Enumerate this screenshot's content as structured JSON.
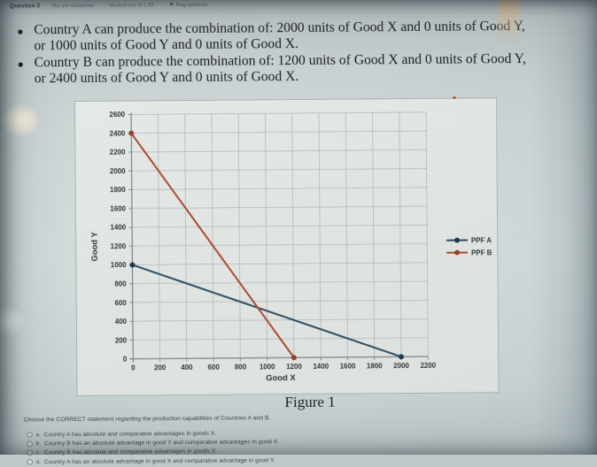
{
  "header": {
    "question_label": "Question 3",
    "status": "Not yet answered",
    "marks": "Marked out of 1.00",
    "flag_icon": "⚑",
    "flag_label": "Flag question"
  },
  "question": {
    "bullets": [
      {
        "lines": [
          "Country A can produce the combination of: 2000 units of Good X and 0 units of Good Y,",
          "or 1000 units of Good Y and 0 units of Good X."
        ]
      },
      {
        "lines": [
          "Country B can produce the combination of: 1200 units of Good X and 0 units of Good Y,",
          "or 2400 units of Good Y and 0 units of Good X."
        ]
      }
    ],
    "figure_caption": "Figure 1",
    "prompt": "Choose the CORRECT statement regarding the production capabilities of Countries A and B.",
    "options": [
      {
        "letter": "a.",
        "text": "Country A has absolute and comparative advantages in goods X."
      },
      {
        "letter": "b.",
        "text": "Country B has an absolute advantage in good Y and comparative advantages in good X."
      },
      {
        "letter": "c.",
        "text": "Country B has absolute and comparative advantages in goods X."
      },
      {
        "letter": "d.",
        "text": "Country A has an absolute advantage in good X and comparative advantage in good Y."
      }
    ]
  },
  "chart_data": {
    "type": "line",
    "title": "",
    "xlabel": "Good X",
    "ylabel": "Good Y",
    "xlim": [
      0,
      2200
    ],
    "ylim": [
      0,
      2600
    ],
    "x_tick_step": 200,
    "y_tick_step": 200,
    "grid": true,
    "legend_position": "right-outside",
    "series": [
      {
        "name": "PPF A",
        "color": "#27495f",
        "marker_color": "#16394d",
        "points": [
          [
            0,
            1000
          ],
          [
            2000,
            0
          ]
        ]
      },
      {
        "name": "PPF B",
        "color": "#ad452b",
        "marker_color": "#9c3a22",
        "points": [
          [
            0,
            2400
          ],
          [
            1200,
            0
          ]
        ]
      }
    ]
  },
  "colors": {
    "page_bg": "#c6d0d1",
    "panel_bg": "#e3e7e3",
    "grid": "#b4bec2",
    "axis": "#82898d",
    "tick_text": "#2f353a",
    "body_text": "#1b1d1e",
    "option_text": "#3d4449",
    "ppf_a": "#27495f",
    "ppf_b": "#ad452b"
  }
}
